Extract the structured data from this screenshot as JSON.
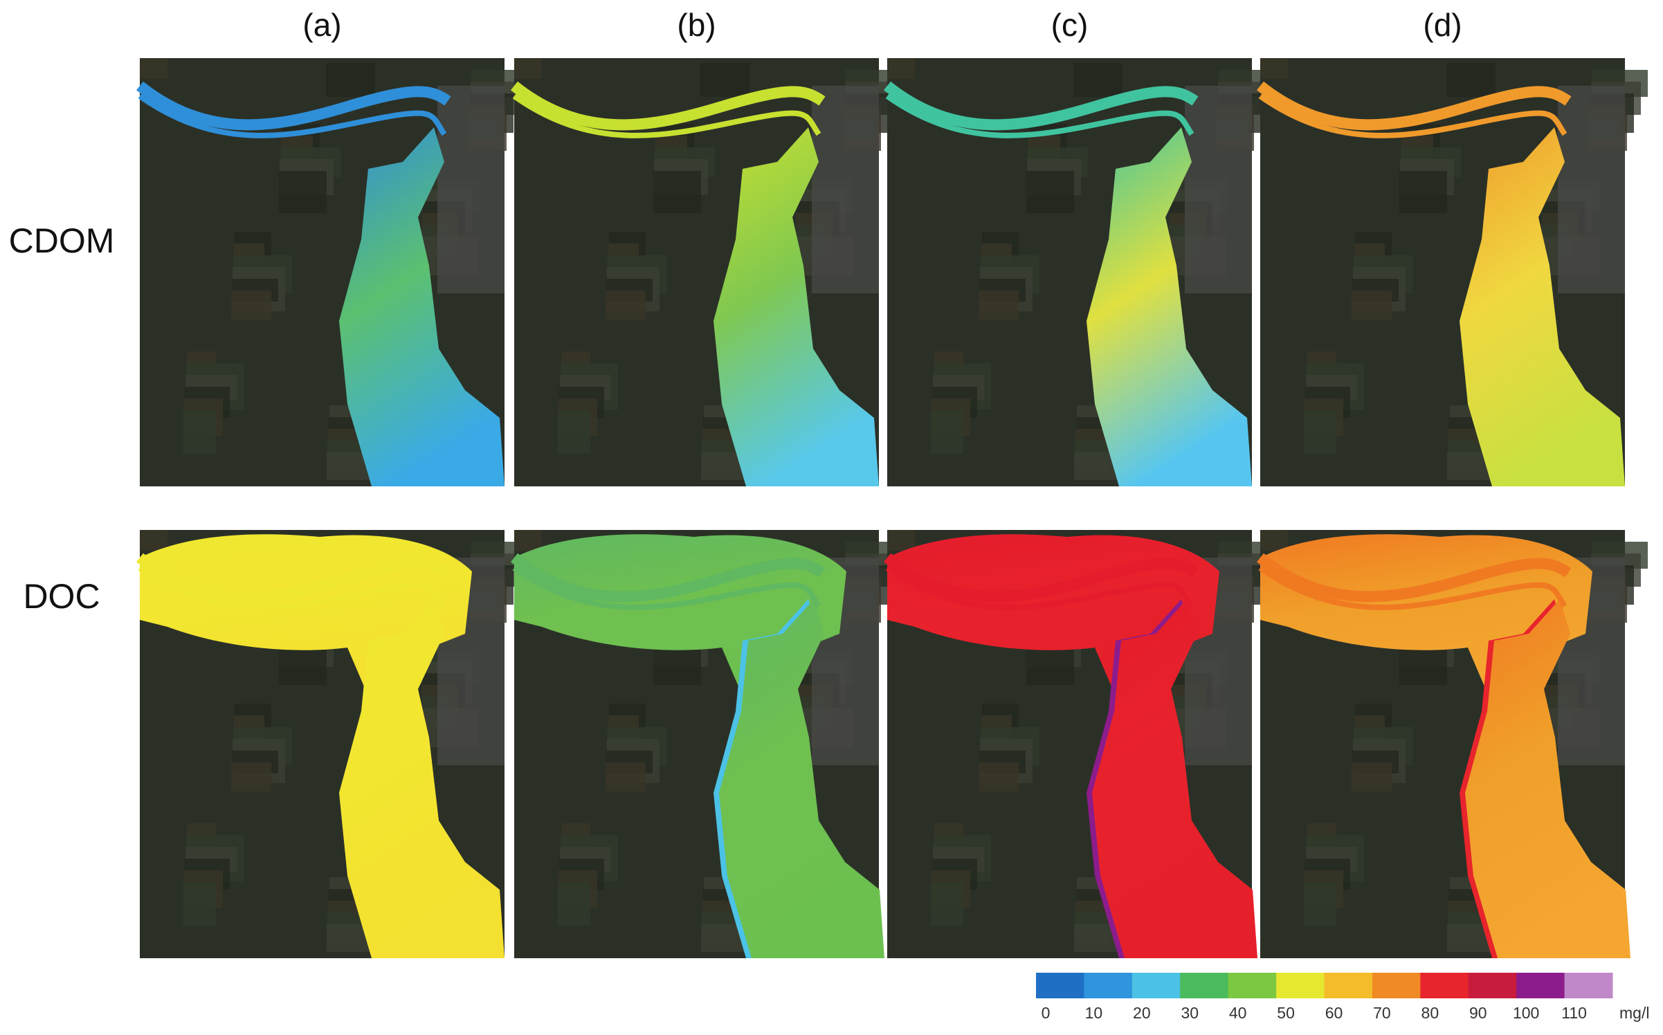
{
  "columns": [
    "(a)",
    "(b)",
    "(c)",
    "(d)"
  ],
  "rows": [
    "CDOM",
    "DOC"
  ],
  "colorbar": {
    "colors": [
      "#1f6fc4",
      "#2f95dc",
      "#4cc2e6",
      "#4cbb5e",
      "#7cc842",
      "#e6e830",
      "#f4bc2a",
      "#f08a24",
      "#e8242c",
      "#c81c3c",
      "#8c1c8c",
      "#c088c8"
    ],
    "ticks": [
      0,
      10,
      20,
      30,
      40,
      50,
      60,
      70,
      80,
      90,
      100,
      110
    ],
    "unit": "mg/l"
  }
}
